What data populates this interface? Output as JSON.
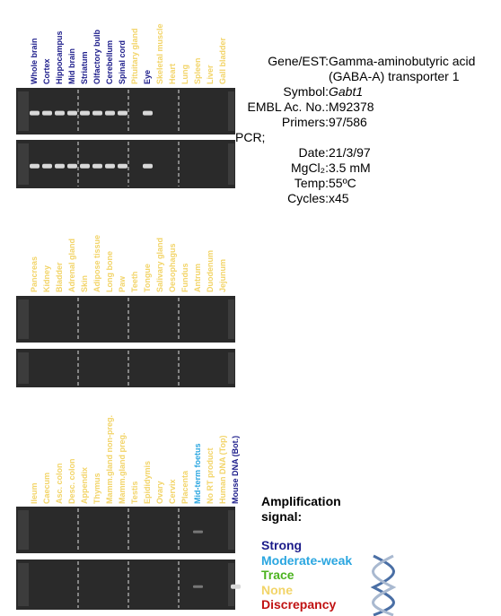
{
  "panels": [
    {
      "lanes": [
        {
          "label": "Whole brain",
          "color": "#1c1c8a"
        },
        {
          "label": "Cortex",
          "color": "#1c1c8a"
        },
        {
          "label": "Hippocampus",
          "color": "#1c1c8a"
        },
        {
          "label": "Mid brain",
          "color": "#1c1c8a"
        },
        {
          "label": "Striatum",
          "color": "#1c1c8a"
        },
        {
          "label": "Olfactory bulb",
          "color": "#1c1c8a"
        },
        {
          "label": "Cerebellum",
          "color": "#1c1c8a"
        },
        {
          "label": "Spinal cord",
          "color": "#1c1c8a"
        },
        {
          "label": "Pituitary gland",
          "color": "#f2d468"
        },
        {
          "label": "Eye",
          "color": "#1c1c8a"
        },
        {
          "label": "Skeletal muscle",
          "color": "#f2d468"
        },
        {
          "label": "Heart",
          "color": "#f2d468"
        },
        {
          "label": "Lung",
          "color": "#f2d468"
        },
        {
          "label": "Spleen",
          "color": "#f2d468"
        },
        {
          "label": "Liver",
          "color": "#f2d468"
        },
        {
          "label": "Gall bladder",
          "color": "#f2d468"
        }
      ]
    },
    {
      "lanes": [
        {
          "label": "Pancreas",
          "color": "#f2d468"
        },
        {
          "label": "Kidney",
          "color": "#f2d468"
        },
        {
          "label": "Bladder",
          "color": "#f2d468"
        },
        {
          "label": "Adrenal gland",
          "color": "#f2d468"
        },
        {
          "label": "Skin",
          "color": "#f2d468"
        },
        {
          "label": "Adipose tissue",
          "color": "#f2d468"
        },
        {
          "label": "Long bone",
          "color": "#f2d468"
        },
        {
          "label": "Paw",
          "color": "#f2d468"
        },
        {
          "label": "Teeth",
          "color": "#f2d468"
        },
        {
          "label": "Tongue",
          "color": "#f2d468"
        },
        {
          "label": "Salivary gland",
          "color": "#f2d468"
        },
        {
          "label": "Oesophagus",
          "color": "#f2d468"
        },
        {
          "label": "Fundus",
          "color": "#f2d468"
        },
        {
          "label": "Antrum",
          "color": "#f2d468"
        },
        {
          "label": "Duodenum",
          "color": "#f2d468"
        },
        {
          "label": "Jejunum",
          "color": "#f2d468"
        }
      ]
    },
    {
      "lanes": [
        {
          "label": "Ileum",
          "color": "#f2d468"
        },
        {
          "label": "Caecum",
          "color": "#f2d468"
        },
        {
          "label": "Asc. colon",
          "color": "#f2d468"
        },
        {
          "label": "Desc. colon",
          "color": "#f2d468"
        },
        {
          "label": "Appendix",
          "color": "#f2d468"
        },
        {
          "label": "Thymus",
          "color": "#f2d468"
        },
        {
          "label": "Mamm.gland non-preg.",
          "color": "#f2d468"
        },
        {
          "label": "Mamm.gland preg.",
          "color": "#f2d468"
        },
        {
          "label": "Testis",
          "color": "#f2d468"
        },
        {
          "label": "Epididymis",
          "color": "#f2d468"
        },
        {
          "label": "Ovary",
          "color": "#f2d468"
        },
        {
          "label": "Cervix",
          "color": "#f2d468"
        },
        {
          "label": "Placenta",
          "color": "#f2d468"
        },
        {
          "label": "Mid-term foetus",
          "color": "#2aa6e0"
        },
        {
          "label": "No RT product",
          "color": "#f2d468"
        },
        {
          "label": "Human DNA (Top)",
          "color": "#f2d468"
        },
        {
          "label": "Mouse DNA (Bot.)",
          "color": "#1c1c8a"
        }
      ]
    }
  ],
  "info": {
    "rows": [
      {
        "key": "Gene/EST:",
        "value": "Gamma-aminobutyric acid (GABA-A) transporter 1"
      },
      {
        "key": "Symbol:",
        "value": "Gabt1"
      },
      {
        "key": "EMBL Ac. No.:",
        "value": "M92378"
      },
      {
        "key": "Primers:",
        "value": "97/586"
      }
    ],
    "pcr": "PCR;",
    "pcr_rows": [
      {
        "key": "Date:",
        "value": "21/3/97"
      },
      {
        "key": "MgCl₂:",
        "value": "3.5 mM"
      },
      {
        "key": "Temp:",
        "value": "55ºC"
      },
      {
        "key": "Cycles:",
        "value": "x45"
      }
    ]
  },
  "legend": {
    "title": "Amplification signal:",
    "items": [
      {
        "label": "Strong",
        "color": "#1c1c8a"
      },
      {
        "label": "Moderate-weak",
        "color": "#2aa6e0"
      },
      {
        "label": "Trace",
        "color": "#4cb320"
      },
      {
        "label": "None",
        "color": "#f2d468"
      },
      {
        "label": "Discrepancy",
        "color": "#c01212"
      }
    ]
  }
}
